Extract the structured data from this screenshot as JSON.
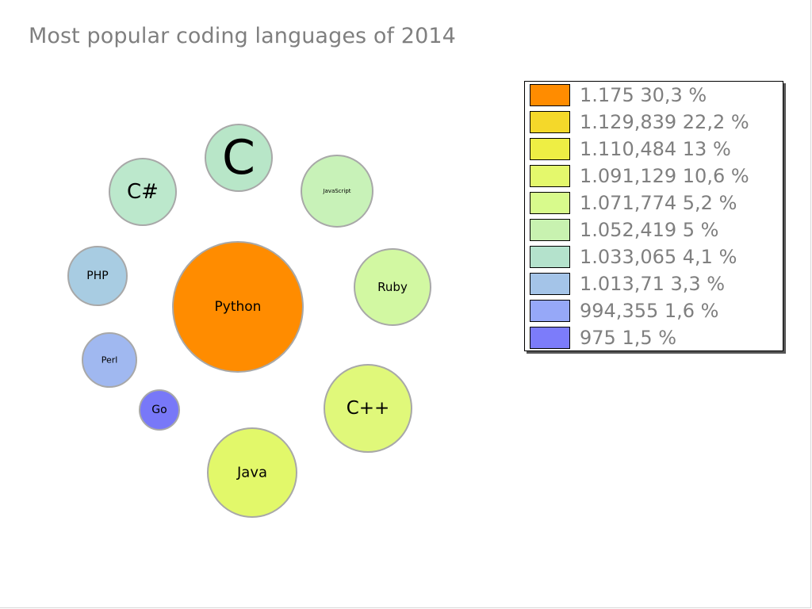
{
  "title": "Most popular coding languages of 2014",
  "chart_data": {
    "type": "bubble",
    "title": "Most popular coding languages of 2014",
    "series": [
      {
        "label": "Python",
        "legend_value": "1.175",
        "percent": "30,3 %",
        "share": 30.3,
        "color": "#ff8c00",
        "label_size": 17
      },
      {
        "label": "C",
        "legend_value": "1.129,839",
        "percent": "22,2 %",
        "share": 22.2,
        "color": "#b8e6c8",
        "label_size": 60
      },
      {
        "label": "Java",
        "legend_value": "1.110,484",
        "percent": "13 %",
        "share": 13.0,
        "color": "#e2f86a",
        "label_size": 18
      },
      {
        "label": "C++",
        "legend_value": "1.091,129",
        "percent": "10,6 %",
        "share": 10.6,
        "color": "#e0f87a",
        "label_size": 23
      },
      {
        "label": "Ruby",
        "legend_value": "1.071,774",
        "percent": "5,2 %",
        "share": 5.2,
        "color": "#d2f8a2",
        "label_size": 15
      },
      {
        "label": "JavaScript",
        "legend_value": "1.052,419",
        "percent": "5 %",
        "share": 5.0,
        "color": "#c8f2b8",
        "label_size": 7
      },
      {
        "label": "C#",
        "legend_value": "1.033,065",
        "percent": "4,1 %",
        "share": 4.1,
        "color": "#bce8cc",
        "label_size": 26
      },
      {
        "label": "PHP",
        "legend_value": "1.013,71",
        "percent": "3,3 %",
        "share": 3.3,
        "color": "#a8cce2",
        "label_size": 14
      },
      {
        "label": "Perl",
        "legend_value": "994,355",
        "percent": "1,6 %",
        "share": 1.6,
        "color": "#a0b8f0",
        "label_size": 11
      },
      {
        "label": "Go",
        "legend_value": "975",
        "percent": "1,5 %",
        "share": 1.5,
        "color": "#7878f8",
        "label_size": 14
      }
    ],
    "legend": {
      "position": "top-right",
      "colors": [
        "#ff8c00",
        "#f4d82a",
        "#eeee44",
        "#e4f86c",
        "#d8fa8c",
        "#c8f2b0",
        "#b4e2cc",
        "#a4c4e8",
        "#96a8f8",
        "#7c7cfa"
      ],
      "entries": [
        "1.175 30,3 %",
        "1.129,839 22,2 %",
        "1.110,484 13 %",
        "1.091,129 10,6 %",
        "1.071,774 5,2 %",
        "1.052,419 5 %",
        "1.033,065 4,1 %",
        "1.013,71 3,3 %",
        "994,355 1,6 %",
        "975 1,5 %"
      ]
    },
    "colors": {
      "bubble_border": "#a8a8a8",
      "title": "#7f7f7f",
      "legend_text": "#7f7f7f"
    }
  }
}
